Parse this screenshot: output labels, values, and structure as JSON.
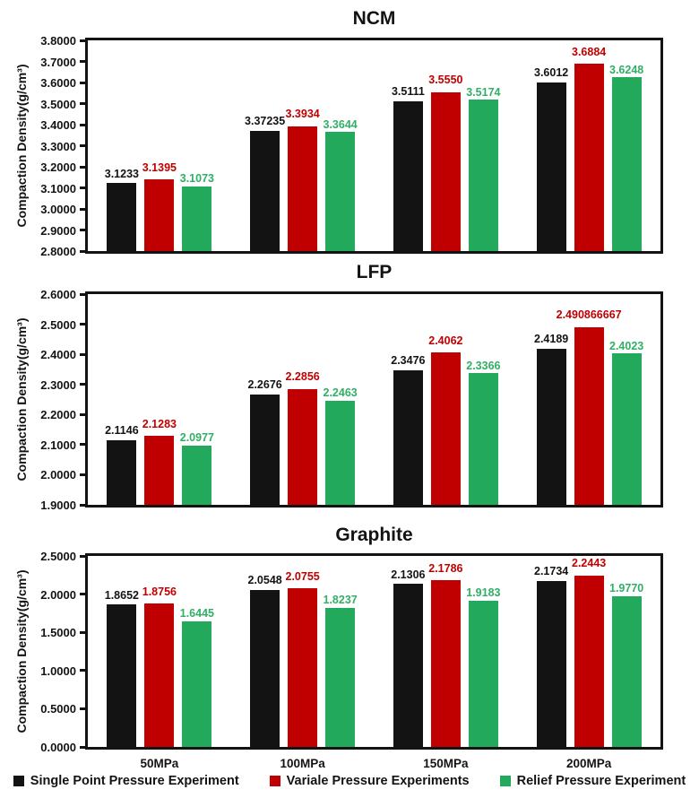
{
  "figure": {
    "background": "#ffffff"
  },
  "palette": {
    "black": "#131313",
    "red": "#c00000",
    "green": "#22a95c",
    "label_black": "#131313",
    "label_red": "#c00000",
    "label_green": "#31af67",
    "axis": "#131313"
  },
  "legend": {
    "items": [
      {
        "label": "Single Point Pressure Experiment",
        "color_key": "black"
      },
      {
        "label": "Variale Pressure Experiments",
        "color_key": "red"
      },
      {
        "label": "Relief Pressure Experiment",
        "color_key": "green"
      }
    ]
  },
  "chart_data": [
    {
      "type": "bar",
      "title": "NCM",
      "ylabel": "Compaction Density(g/cm³)",
      "xlabel": "",
      "ylim": [
        2.8,
        3.8
      ],
      "grid": false,
      "categories": [
        "50MPa",
        "100MPa",
        "150MPa",
        "200MPa"
      ],
      "show_category_labels": false,
      "yticks": [
        {
          "v": 3.8,
          "label": "3.8000"
        },
        {
          "v": 3.7,
          "label": "3.7000"
        },
        {
          "v": 3.6,
          "label": "3.6000"
        },
        {
          "v": 3.5,
          "label": "3.5000"
        },
        {
          "v": 3.4,
          "label": "3.4000"
        },
        {
          "v": 3.3,
          "label": "3.3000"
        },
        {
          "v": 3.2,
          "label": "3.2000"
        },
        {
          "v": 3.1,
          "label": "3.1000"
        },
        {
          "v": 3.0,
          "label": "3.0000"
        },
        {
          "v": 2.9,
          "label": "2.9000"
        },
        {
          "v": 2.8,
          "label": "2.8000"
        }
      ],
      "series": [
        {
          "name": "Single Point Pressure Experiment",
          "color_key": "black",
          "values": [
            3.1233,
            3.37235,
            3.5111,
            3.6012
          ],
          "labels": [
            "3.1233",
            "3.37235",
            "3.5111",
            "3.6012"
          ]
        },
        {
          "name": "Variale Pressure Experiments",
          "color_key": "red",
          "values": [
            3.1395,
            3.3934,
            3.555,
            3.6884
          ],
          "labels": [
            "3.1395",
            "3.3934",
            "3.5550",
            "3.6884"
          ]
        },
        {
          "name": "Relief Pressure Experiment",
          "color_key": "green",
          "values": [
            3.1073,
            3.3644,
            3.5174,
            3.6248
          ],
          "labels": [
            "3.1073",
            "3.3644",
            "3.5174",
            "3.6248"
          ]
        }
      ]
    },
    {
      "type": "bar",
      "title": "LFP",
      "ylabel": "Compaction Density(g/cm³)",
      "xlabel": "",
      "ylim": [
        1.9,
        2.6
      ],
      "grid": false,
      "categories": [
        "50MPa",
        "100MPa",
        "150MPa",
        "200MPa"
      ],
      "show_category_labels": false,
      "yticks": [
        {
          "v": 2.6,
          "label": "2.6000"
        },
        {
          "v": 2.5,
          "label": "2.5000"
        },
        {
          "v": 2.4,
          "label": "2.4000"
        },
        {
          "v": 2.3,
          "label": "2.3000"
        },
        {
          "v": 2.2,
          "label": "2.2000"
        },
        {
          "v": 2.1,
          "label": "2.1000"
        },
        {
          "v": 2.0,
          "label": "2.0000"
        },
        {
          "v": 1.9,
          "label": "1.9000"
        }
      ],
      "series": [
        {
          "name": "Single Point Pressure Experiment",
          "color_key": "black",
          "values": [
            2.1146,
            2.2676,
            2.3476,
            2.4189
          ],
          "labels": [
            "2.1146",
            "2.2676",
            "2.3476",
            "2.4189"
          ]
        },
        {
          "name": "Variale Pressure Experiments",
          "color_key": "red",
          "values": [
            2.1283,
            2.2856,
            2.4062,
            2.490866667
          ],
          "labels": [
            "2.1283",
            "2.2856",
            "2.4062",
            "2.490866667"
          ]
        },
        {
          "name": "Relief Pressure Experiment",
          "color_key": "green",
          "values": [
            2.0977,
            2.2463,
            2.3366,
            2.4023
          ],
          "labels": [
            "2.0977",
            "2.2463",
            "2.3366",
            "2.4023"
          ]
        }
      ]
    },
    {
      "type": "bar",
      "title": "Graphite",
      "ylabel": "Compaction Density(g/cm³)",
      "xlabel": "",
      "ylim": [
        0.0,
        2.5
      ],
      "grid": false,
      "categories": [
        "50MPa",
        "100MPa",
        "150MPa",
        "200MPa"
      ],
      "show_category_labels": true,
      "yticks": [
        {
          "v": 2.5,
          "label": "2.5000"
        },
        {
          "v": 2.0,
          "label": "2.0000"
        },
        {
          "v": 1.5,
          "label": "1.5000"
        },
        {
          "v": 1.0,
          "label": "1.0000"
        },
        {
          "v": 0.5,
          "label": "0.5000"
        },
        {
          "v": 0.0,
          "label": "0.0000"
        }
      ],
      "series": [
        {
          "name": "Single Point Pressure Experiment",
          "color_key": "black",
          "values": [
            1.8652,
            2.0548,
            2.1306,
            2.1734
          ],
          "labels": [
            "1.8652",
            "2.0548",
            "2.1306",
            "2.1734"
          ]
        },
        {
          "name": "Variale Pressure Experiments",
          "color_key": "red",
          "values": [
            1.8756,
            2.0755,
            2.1786,
            2.2443
          ],
          "labels": [
            "1.8756",
            "2.0755",
            "2.1786",
            "2.2443"
          ]
        },
        {
          "name": "Relief Pressure Experiment",
          "color_key": "green",
          "values": [
            1.6445,
            1.8237,
            1.9183,
            1.977
          ],
          "labels": [
            "1.6445",
            "1.8237",
            "1.9183",
            "1.9770"
          ]
        }
      ]
    }
  ]
}
